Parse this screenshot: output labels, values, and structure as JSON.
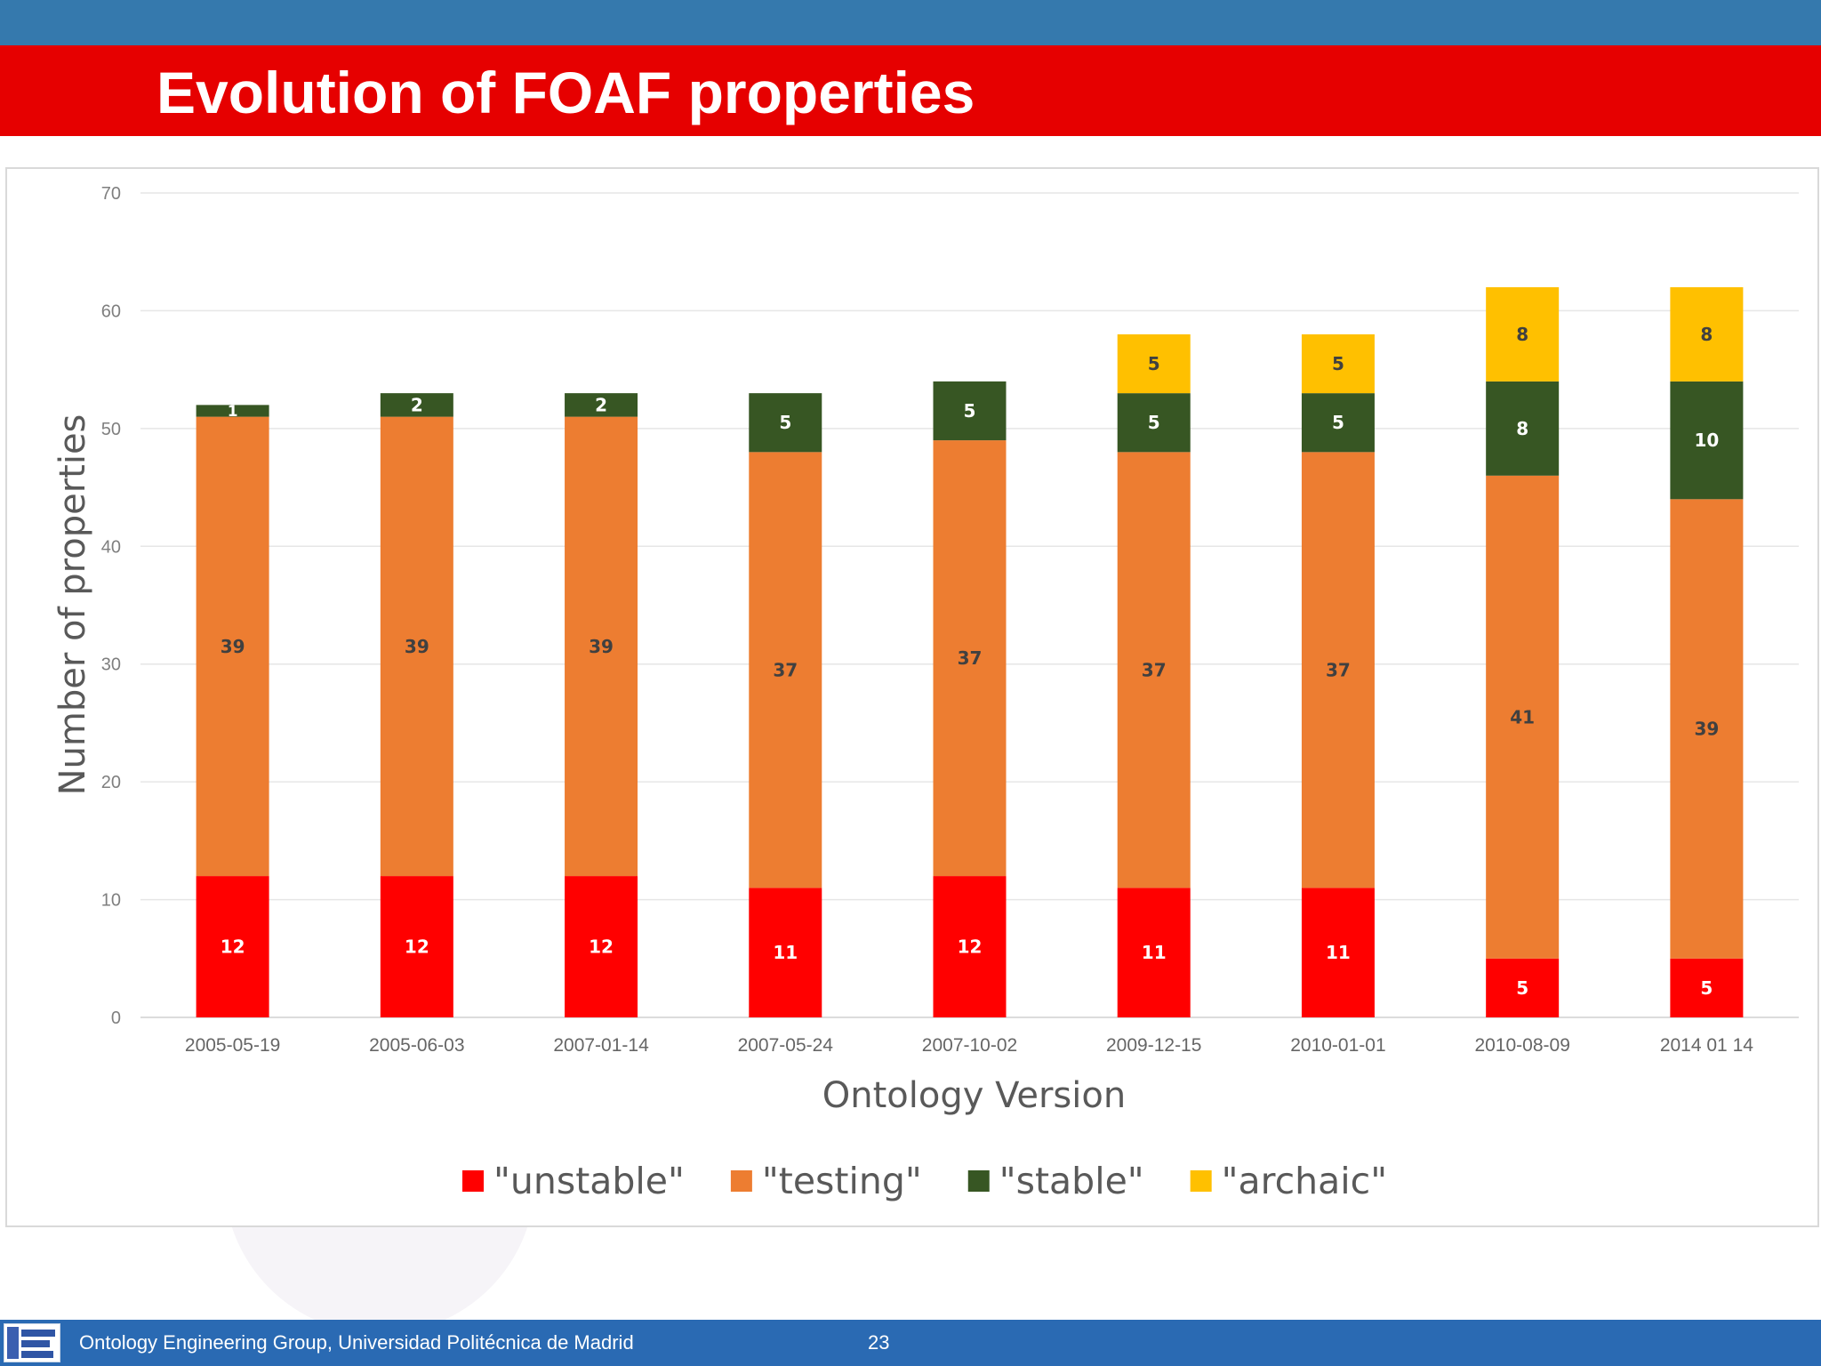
{
  "slide": {
    "title": "Evolution of FOAF properties",
    "footer_org": "Ontology Engineering Group, Universidad Politécnica de Madrid",
    "page_number": "23",
    "logo_icon": "oeg-logo-icon"
  },
  "chart_data": {
    "type": "bar",
    "stacked": true,
    "xlabel": "Ontology Version",
    "ylabel": "Number of properties",
    "ylim": [
      0,
      70
    ],
    "yticks": [
      0,
      10,
      20,
      30,
      40,
      50,
      60,
      70
    ],
    "grid": true,
    "legend_position": "bottom",
    "categories": [
      "2005-05-19",
      "2005-06-03",
      "2007-01-14",
      "2007-05-24",
      "2007-10-02",
      "2009-12-15",
      "2010-01-01",
      "2010-08-09",
      "2014 01 14"
    ],
    "series": [
      {
        "name": "\"unstable\"",
        "color": "#ff0000",
        "label_color": "#ffffff",
        "values": [
          12,
          12,
          12,
          11,
          12,
          11,
          11,
          5,
          5
        ]
      },
      {
        "name": "\"testing\"",
        "color": "#ed7d31",
        "label_color": "#404040",
        "values": [
          39,
          39,
          39,
          37,
          37,
          37,
          37,
          41,
          39
        ]
      },
      {
        "name": "\"stable\"",
        "color": "#375623",
        "label_color": "#ffffff",
        "values": [
          1,
          2,
          2,
          5,
          5,
          5,
          5,
          8,
          10
        ]
      },
      {
        "name": "\"archaic\"",
        "color": "#ffc000",
        "label_color": "#404040",
        "values": [
          0,
          0,
          0,
          0,
          0,
          5,
          5,
          8,
          8
        ]
      }
    ]
  }
}
